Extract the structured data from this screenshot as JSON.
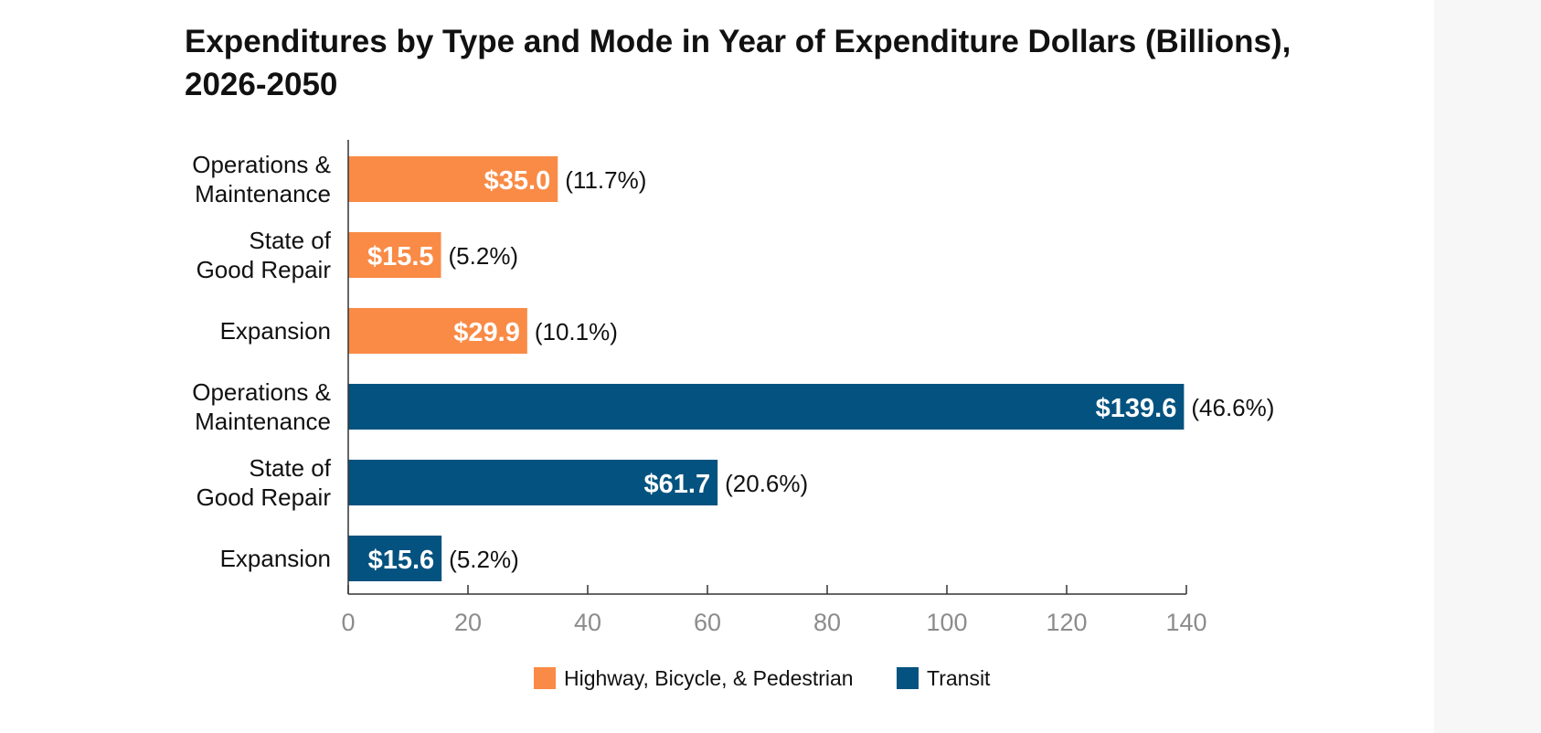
{
  "chart_data": {
    "type": "bar",
    "orientation": "horizontal",
    "title": "Expenditures by Type and Mode in Year of Expenditure Dollars (Billions), 2026-2050",
    "xlim": [
      0,
      140
    ],
    "x_ticks": [
      0,
      20,
      40,
      60,
      80,
      100,
      120,
      140
    ],
    "grid": false,
    "legend_position": "bottom-center",
    "series": [
      {
        "name": "Highway, Bicycle, & Pedestrian",
        "color": "#f98b46"
      },
      {
        "name": "Transit",
        "color": "#04527f"
      }
    ],
    "bars": [
      {
        "category": [
          "Operations &",
          "Maintenance"
        ],
        "series": "Highway, Bicycle, & Pedestrian",
        "value": 35.0,
        "value_label": "$35.0",
        "percent_label": "(11.7%)"
      },
      {
        "category": [
          "State of",
          "Good Repair"
        ],
        "series": "Highway, Bicycle, & Pedestrian",
        "value": 15.5,
        "value_label": "$15.5",
        "percent_label": "(5.2%)"
      },
      {
        "category": [
          "Expansion"
        ],
        "series": "Highway, Bicycle, & Pedestrian",
        "value": 29.9,
        "value_label": "$29.9",
        "percent_label": "(10.1%)"
      },
      {
        "category": [
          "Operations &",
          "Maintenance"
        ],
        "series": "Transit",
        "value": 139.6,
        "value_label": "$139.6",
        "percent_label": "(46.6%)"
      },
      {
        "category": [
          "State of",
          "Good Repair"
        ],
        "series": "Transit",
        "value": 61.7,
        "value_label": "$61.7",
        "percent_label": "(20.6%)"
      },
      {
        "category": [
          "Expansion"
        ],
        "series": "Transit",
        "value": 15.6,
        "value_label": "$15.6",
        "percent_label": "(5.2%)"
      }
    ]
  }
}
